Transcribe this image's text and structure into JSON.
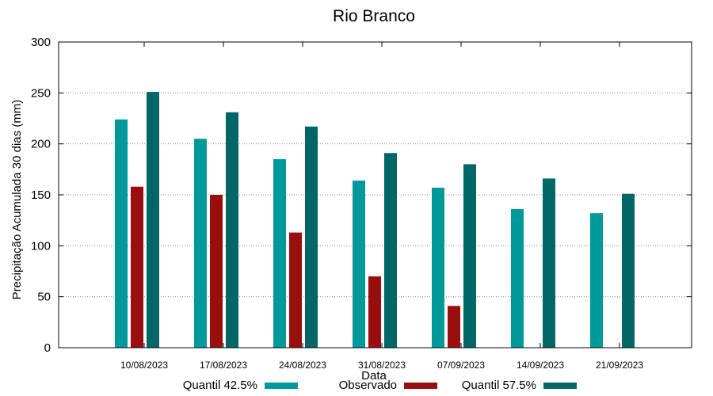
{
  "chart_data": {
    "type": "bar",
    "title": "Rio Branco",
    "xlabel": "Data",
    "ylabel": "Precipitação Acumulada 30 dias (mm)",
    "ylim": [
      0,
      300
    ],
    "yticks": [
      0,
      50,
      100,
      150,
      200,
      250,
      300
    ],
    "grid": true,
    "legend_position": "bottom",
    "categories": [
      "10/08/2023",
      "17/08/2023",
      "24/08/2023",
      "31/08/2023",
      "07/09/2023",
      "14/09/2023",
      "21/09/2023"
    ],
    "series": [
      {
        "name": "Quantil 42.5%",
        "color": "#009999",
        "values": [
          224,
          205,
          185,
          164,
          157,
          136,
          132
        ]
      },
      {
        "name": "Observado",
        "color": "#990f0f",
        "values": [
          158,
          150,
          113,
          70,
          41,
          null,
          null
        ]
      },
      {
        "name": "Quantil 57.5%",
        "color": "#006666",
        "values": [
          251,
          231,
          217,
          191,
          180,
          166,
          151
        ]
      }
    ]
  }
}
